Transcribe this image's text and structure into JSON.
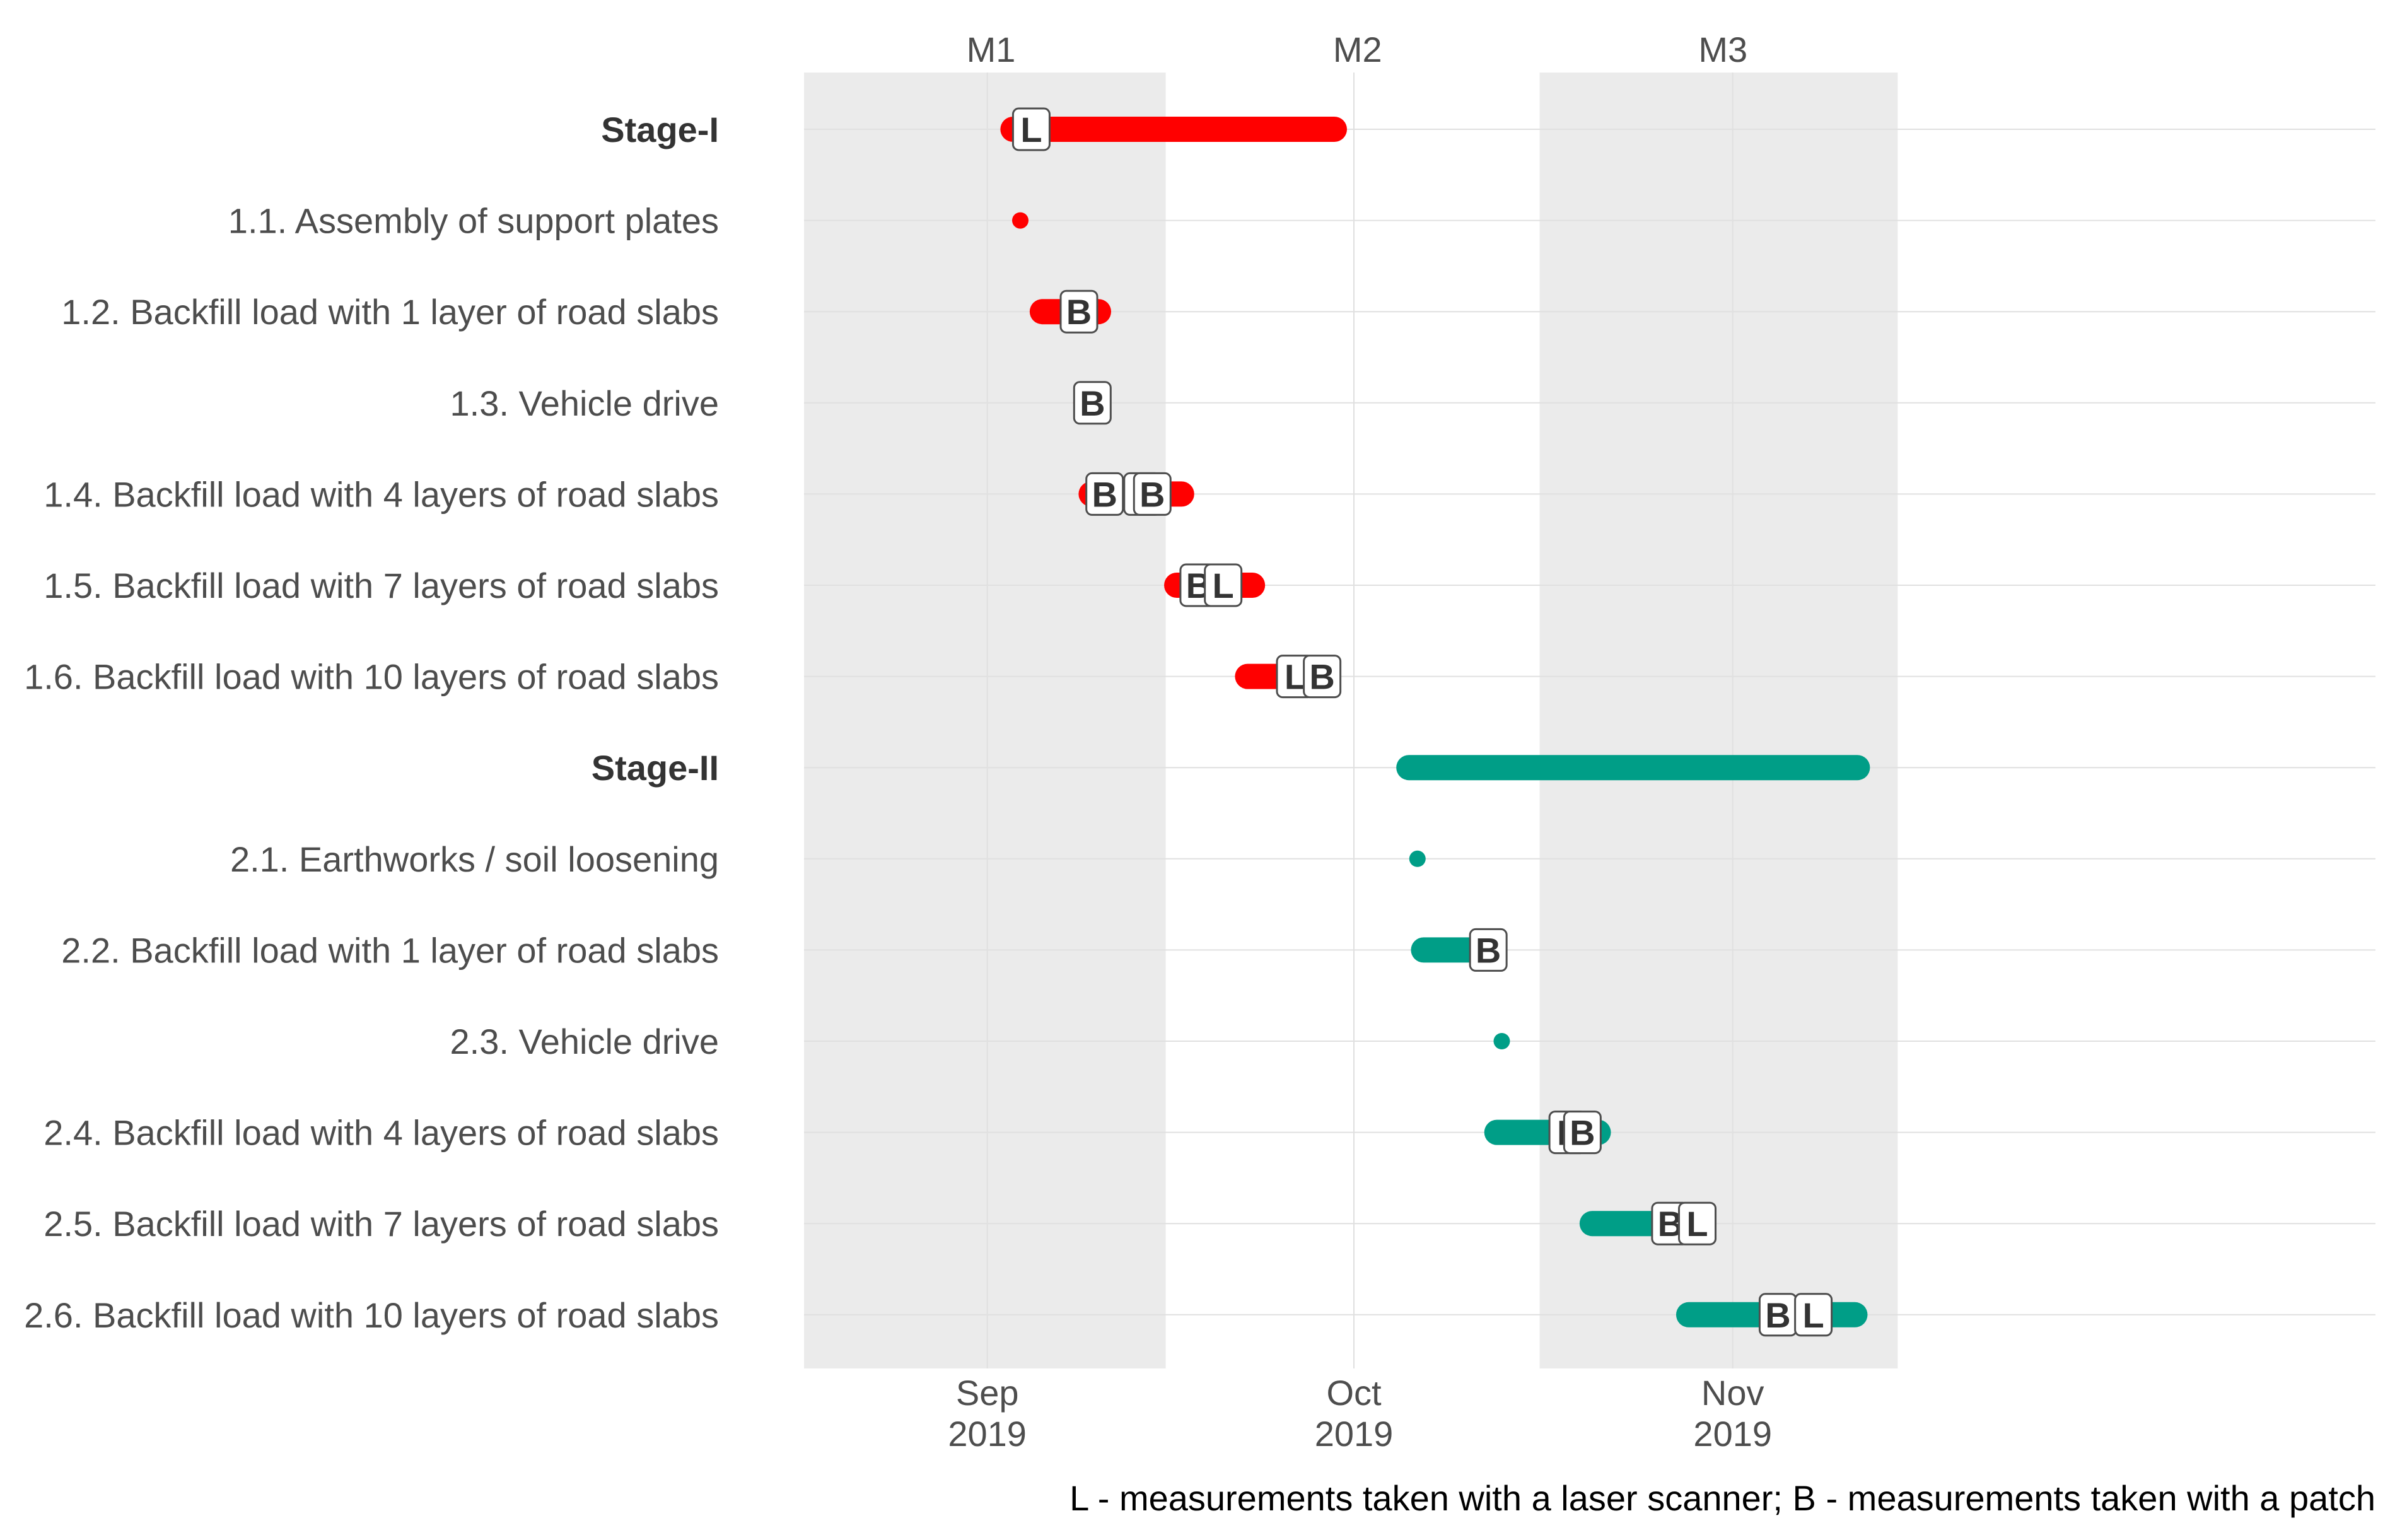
{
  "chart_data": {
    "type": "gantt",
    "time_axis": {
      "start_day": 0,
      "end_day": 128.6,
      "day_zero_date": "2019-08-17",
      "ticks": [
        {
          "day": 15,
          "month": "Sep",
          "year": "2019"
        },
        {
          "day": 45,
          "month": "Oct",
          "year": "2019"
        },
        {
          "day": 76,
          "month": "Nov",
          "year": "2019"
        }
      ]
    },
    "periods": [
      {
        "label": "M1",
        "label_day": 15.3,
        "shaded": true,
        "start_day": 0,
        "end_day": 29.6
      },
      {
        "label": "M2",
        "label_day": 45.3,
        "shaded": false,
        "start_day": 29.6,
        "end_day": 60.2
      },
      {
        "label": "M3",
        "label_day": 75.2,
        "shaded": true,
        "start_day": 60.2,
        "end_day": 89.5
      }
    ],
    "rows": [
      {
        "label": "Stage-I",
        "bold": true,
        "stage": "I",
        "start": 17.1,
        "end": 43.4,
        "markers": [
          {
            "text": "L",
            "day": 18.6
          }
        ]
      },
      {
        "label": "1.1. Assembly of support plates",
        "bold": false,
        "stage": "I",
        "start": 17.7,
        "end": 17.7,
        "markers": []
      },
      {
        "label": "1.2. Backfill load with 1 layer of road slabs",
        "bold": false,
        "stage": "I",
        "start": 19.5,
        "end": 24.1,
        "markers": [
          {
            "text": "B",
            "day": 22.5
          }
        ]
      },
      {
        "label": "1.3. Vehicle drive",
        "bold": false,
        "stage": "I",
        "start": 22.5,
        "end": 22.9,
        "markers": [
          {
            "text": "B",
            "day": 23.6
          }
        ]
      },
      {
        "label": "1.4. Backfill load with 4 layers of road slabs",
        "bold": false,
        "stage": "I",
        "start": 23.5,
        "end": 30.9,
        "markers": [
          {
            "text": "B",
            "day": 24.6
          },
          {
            "text": "L",
            "day": 27.7
          },
          {
            "text": "B",
            "day": 28.5
          }
        ]
      },
      {
        "label": "1.5. Backfill load with 7 layers of road slabs",
        "bold": false,
        "stage": "I",
        "start": 30.5,
        "end": 36.7,
        "markers": [
          {
            "text": "B",
            "day": 32.3
          },
          {
            "text": "L",
            "day": 34.3
          }
        ]
      },
      {
        "label": "1.6. Backfill load with 10 layers of road slabs",
        "bold": false,
        "stage": "I",
        "start": 36.3,
        "end": 42.7,
        "markers": [
          {
            "text": "L",
            "day": 40.2
          },
          {
            "text": "B",
            "day": 42.4
          }
        ]
      },
      {
        "label": "Stage-II",
        "bold": true,
        "stage": "II",
        "start": 49.5,
        "end": 86.2,
        "markers": []
      },
      {
        "label": "2.1. Earthworks / soil loosening",
        "bold": false,
        "stage": "II",
        "start": 50.2,
        "end": 50.2,
        "markers": []
      },
      {
        "label": "2.2. Backfill load with 1 layer of road slabs",
        "bold": false,
        "stage": "II",
        "start": 50.7,
        "end": 56.2,
        "markers": [
          {
            "text": "B",
            "day": 56.0
          }
        ]
      },
      {
        "label": "2.3. Vehicle drive",
        "bold": false,
        "stage": "II",
        "start": 57.1,
        "end": 57.1,
        "markers": []
      },
      {
        "label": "2.4. Backfill load with 4 layers of road slabs",
        "bold": false,
        "stage": "II",
        "start": 56.7,
        "end": 65.0,
        "markers": [
          {
            "text": "L",
            "day": 62.5
          },
          {
            "text": "B",
            "day": 63.7
          }
        ]
      },
      {
        "label": "2.5. Backfill load with 7 layers of road slabs",
        "bold": false,
        "stage": "II",
        "start": 64.5,
        "end": 71.0,
        "markers": [
          {
            "text": "B",
            "day": 70.9
          },
          {
            "text": "L",
            "day": 73.1
          }
        ]
      },
      {
        "label": "2.6. Backfill load with 10 layers of road slabs",
        "bold": false,
        "stage": "II",
        "start": 72.4,
        "end": 86.0,
        "markers": [
          {
            "text": "B",
            "day": 79.7
          },
          {
            "text": "L",
            "day": 82.6
          }
        ]
      }
    ],
    "colors": {
      "stage_I": "#ff0000",
      "stage_II": "#009e87",
      "shade": "#ebebeb",
      "grid": "#e0e0e0"
    },
    "caption": "L - measurements taken with a laser scanner; B - measurements taken with a patch"
  }
}
